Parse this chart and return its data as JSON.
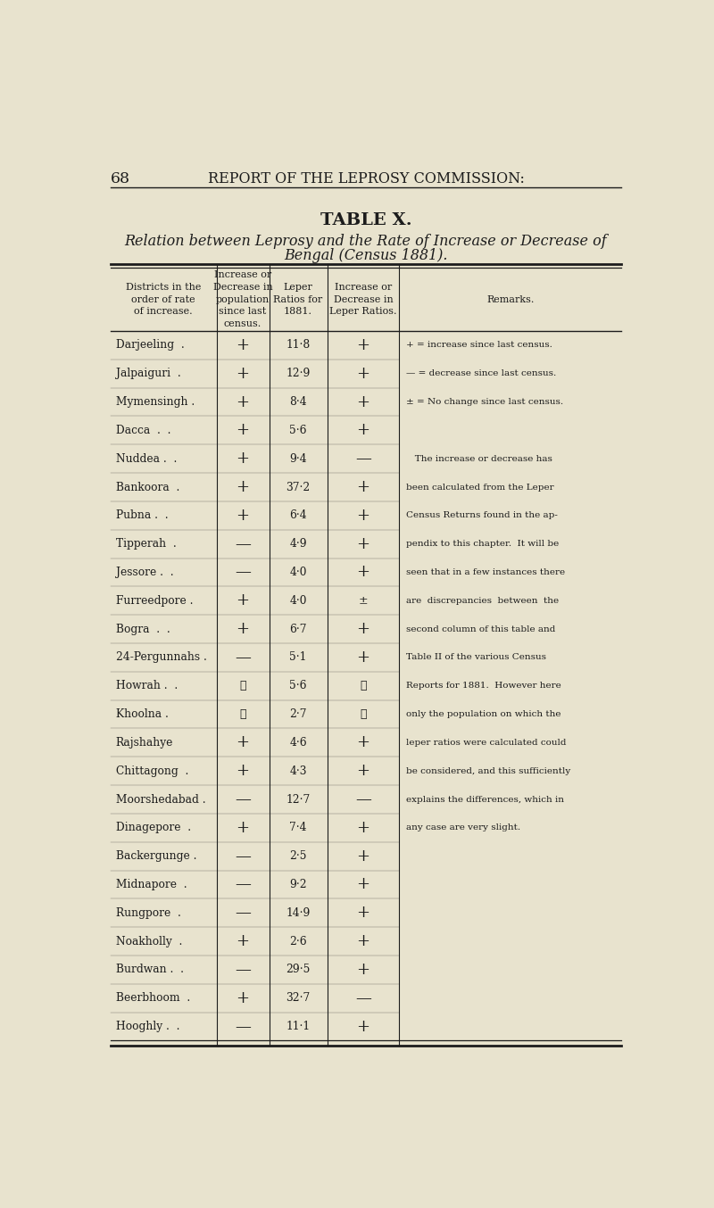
{
  "page_number": "68",
  "header_small_caps": "Report of the Leprosy Commission:",
  "table_title": "TABLE X.",
  "subtitle_line1": "Relation between Leprosy and the Rate of Increase or Decrease of",
  "subtitle_line2": "Bengal (Census 1881).",
  "col_header_0": "Districts in the\norder of rate\nof increase.",
  "col_header_1": "Increase or\nDecrease in\npopulation\nsince last\ncensus.",
  "col_header_2": "Leper\nRatios for\n1881.",
  "col_header_3": "Increase or\nDecrease in\nLeper Ratios.",
  "col_header_4": "Remarks.",
  "rows": [
    [
      "Darjeeling  .",
      "+",
      "11·8",
      "+"
    ],
    [
      "Jalpaiguri  .",
      "+",
      "12·9",
      "+"
    ],
    [
      "Mymensingh .",
      "+",
      "8·4",
      "+"
    ],
    [
      "Dacca  .  .",
      "+",
      "5·6",
      "+"
    ],
    [
      "Nuddea .  .",
      "+",
      "9·4",
      "—"
    ],
    [
      "Bankoora  .",
      "+",
      "37·2",
      "+"
    ],
    [
      "Pubna .  .",
      "+",
      "6·4",
      "+"
    ],
    [
      "Tipperah  .",
      "—",
      "4·9",
      "+"
    ],
    [
      "Jessore .  .",
      "—",
      "4·0",
      "+"
    ],
    [
      "Furreedpore .",
      "+",
      "4·0",
      "±"
    ],
    [
      "Bogra  .  .",
      "+",
      "6·7",
      "+"
    ],
    [
      "24-Pergunnahs .",
      "—",
      "5·1",
      "+"
    ],
    [
      "Howrah .  .",
      "⋯",
      "5·6",
      "⋯"
    ],
    [
      "Khoolna .",
      "⋯",
      "2·7",
      "⋯"
    ],
    [
      "Rajshahye",
      "+",
      "4·6",
      "+"
    ],
    [
      "Chittagong  .",
      "+",
      "4·3",
      "+"
    ],
    [
      "Moorshedabad .",
      "—",
      "12·7",
      "—"
    ],
    [
      "Dinagepore  .",
      "+",
      "7·4",
      "+"
    ],
    [
      "Backergunge .",
      "—",
      "2·5",
      "+"
    ],
    [
      "Midnapore  .",
      "—",
      "9·2",
      "+"
    ],
    [
      "Rungpore  .",
      "—",
      "14·9",
      "+"
    ],
    [
      "Noakholly  .",
      "+",
      "2·6",
      "+"
    ],
    [
      "Burdwan .  .",
      "—",
      "29·5",
      "+"
    ],
    [
      "Beerbhoom  .",
      "+",
      "32·7",
      "—"
    ],
    [
      "Hooghly .  .",
      "—",
      "11·1",
      "+"
    ]
  ],
  "remarks_block": [
    "+ = increase since last census.",
    "— = decrease since last census.",
    "± = No change since last census.",
    "    The increase or decrease has been calculated from the Leper Census Returns found in the ap- pendix to this chapter.  It will be seen that in a few instances there are  discrepancies  between  the second column of this table and Table II of the various Census Reports for 1881.  However here only the population on which the leper ratios were calculated could be considered, and this sufficiently explains the differences, which in any case are very slight."
  ],
  "remarks_lines": [
    "+ = increase since last census.",
    "— = decrease since last census.",
    "± = No change since last census.",
    "",
    "   The increase or decrease has",
    "been calculated from the Leper",
    "Census Returns found in the ap-",
    "pendix to this chapter.  It will be",
    "seen that in a few instances there",
    "are  discrepancies  between  the",
    "second column of this table and",
    "Table II of the various Census",
    "Reports for 1881.  However here",
    "only the population on which the",
    "leper ratios were calculated could",
    "be considered, and this sufficiently",
    "explains the differences, which in",
    "any case are very slight."
  ],
  "bg_color": "#e8e3ce",
  "text_color": "#1c1c1c"
}
